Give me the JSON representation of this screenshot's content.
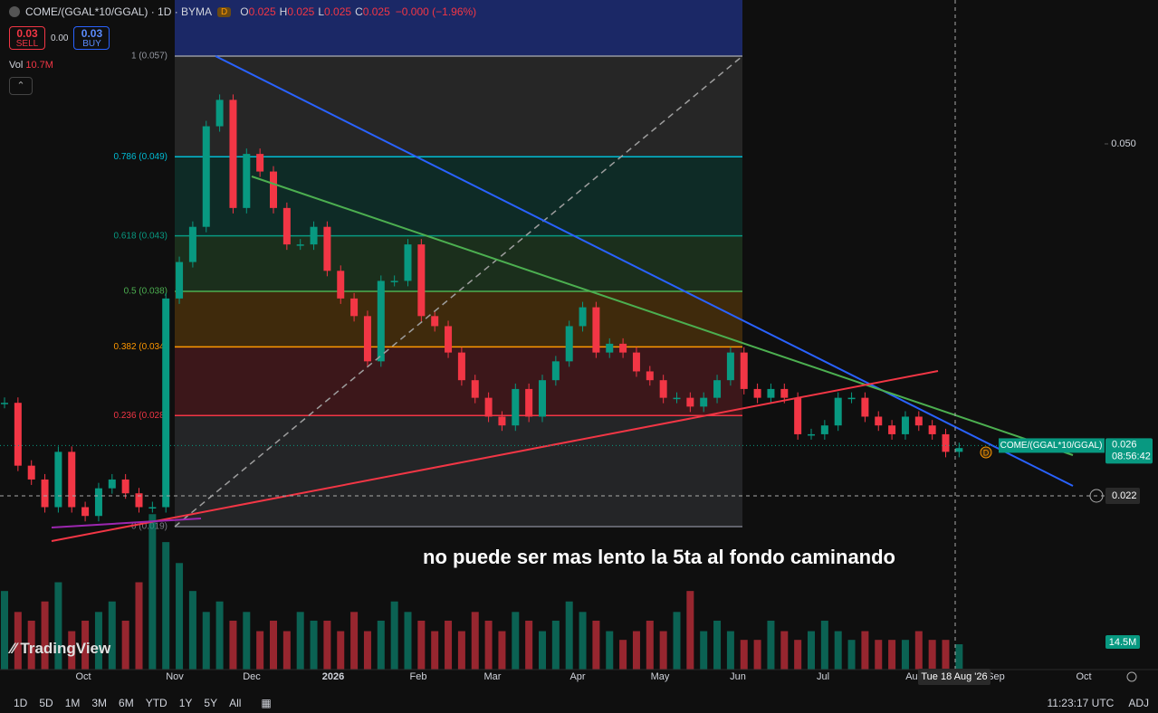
{
  "header": {
    "symbol": "COME/(GGAL*10/GGAL) · 1D · BYMA",
    "badge": "D",
    "ohlc": [
      {
        "key": "O",
        "value": "0.025"
      },
      {
        "key": "H",
        "value": "0.025"
      },
      {
        "key": "L",
        "value": "0.025"
      },
      {
        "key": "C",
        "value": "0.025"
      }
    ],
    "change": "−0.000 (−1.96%)"
  },
  "trade": {
    "sell_price": "0.03",
    "sell": "SELL",
    "spread": "0.00",
    "buy_price": "0.03",
    "buy": "BUY"
  },
  "volume": {
    "label": "Vol",
    "value": "10.7M"
  },
  "price_axis": {
    "ticks": [
      {
        "value": 0.05,
        "label": "0.050"
      }
    ],
    "crosshair": {
      "value": 0.022,
      "label": "0.022"
    },
    "last": {
      "value": 0.026,
      "label": "0.026",
      "countdown": "08:56:42",
      "symbol": "COME/(GGAL*10/GGAL)"
    },
    "volume_label": "14.5M"
  },
  "fib_levels": [
    {
      "ratio": 1,
      "label": "1 (0.057)",
      "color": "#9598a1"
    },
    {
      "ratio": 0.786,
      "label": "0.786 (0.049)",
      "color": "#00bcd4"
    },
    {
      "ratio": 0.618,
      "label": "0.618 (0.043)",
      "color": "#089981"
    },
    {
      "ratio": 0.5,
      "label": "0.5 (0.038)",
      "color": "#4caf50"
    },
    {
      "ratio": 0.382,
      "label": "0.382 (0.034)",
      "color": "#ff9800"
    },
    {
      "ratio": 0.236,
      "label": "0.236 (0.028)",
      "color": "#f23645"
    },
    {
      "ratio": 0,
      "label": "0 (0.019)",
      "color": "#787b86"
    }
  ],
  "series": {
    "closes": [
      0.0294,
      0.0244,
      0.0233,
      0.0211,
      0.0255,
      0.0211,
      0.0204,
      0.0226,
      0.0233,
      0.0222,
      0.0211,
      0.0211,
      0.0377,
      0.0406,
      0.0434,
      0.0514,
      0.0535,
      0.0449,
      0.0492,
      0.0478,
      0.0449,
      0.042,
      0.042,
      0.0434,
      0.0399,
      0.0377,
      0.0363,
      0.0327,
      0.0391,
      0.0391,
      0.042,
      0.0363,
      0.0355,
      0.0334,
      0.0312,
      0.0298,
      0.0283,
      0.0276,
      0.0305,
      0.0283,
      0.0312,
      0.0327,
      0.0355,
      0.037,
      0.0334,
      0.0341,
      0.0334,
      0.0319,
      0.0312,
      0.0298,
      0.0298,
      0.0291,
      0.0298,
      0.0312,
      0.0334,
      0.0305,
      0.0298,
      0.0305,
      0.0298,
      0.0269,
      0.0269,
      0.0276,
      0.0298,
      0.0298,
      0.0283,
      0.0276,
      0.0269,
      0.0283,
      0.0276,
      0.0269,
      0.0255,
      0.0258
    ],
    "volumes_m": [
      45,
      33,
      28,
      39,
      50,
      22,
      28,
      33,
      39,
      28,
      50,
      89,
      73,
      61,
      45,
      33,
      39,
      28,
      33,
      22,
      28,
      22,
      33,
      28,
      28,
      22,
      33,
      22,
      28,
      39,
      33,
      28,
      22,
      28,
      22,
      33,
      28,
      22,
      33,
      28,
      22,
      28,
      39,
      33,
      28,
      22,
      17,
      22,
      28,
      22,
      33,
      45,
      22,
      28,
      22,
      17,
      17,
      28,
      22,
      17,
      22,
      28,
      22,
      17,
      22,
      17,
      17,
      17,
      22,
      17,
      17,
      14.5
    ]
  },
  "time_axis": [
    "Oct",
    "Nov",
    "Dec",
    "2026",
    "Feb",
    "Mar",
    "Apr",
    "May",
    "Jun",
    "Jul",
    "Aug",
    "Sep",
    "Oct"
  ],
  "crosshair_date": "Tue 18 Aug '26",
  "annotation": "no puede ser mas lento la 5ta al fondo caminando",
  "logo": "TradingView",
  "toolbar": {
    "ranges": [
      "1D",
      "5D",
      "1M",
      "3M",
      "6M",
      "YTD",
      "1Y",
      "5Y",
      "All"
    ],
    "clock": "11:23:17 UTC",
    "adj": "ADJ"
  }
}
